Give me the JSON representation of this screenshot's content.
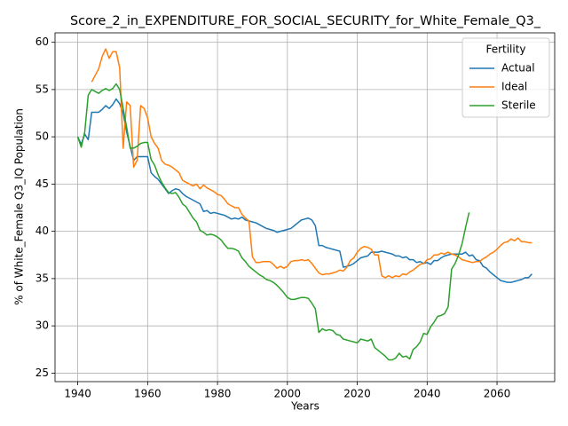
{
  "chart_data": {
    "type": "line",
    "title": "Score_2_in_EXPENDITURE_FOR_SOCIAL_SECURITY_for_White_Female_Q3_",
    "x_label": "Years",
    "y_label": "% of White_Female Q3_IQ Population",
    "legend_title": "Fertility",
    "legend_position": "upper right",
    "grid": true,
    "xlim": [
      1933.5,
      2076.5
    ],
    "ylim": [
      24.1,
      61.0
    ],
    "xticks": [
      1940,
      1960,
      1980,
      2000,
      2020,
      2040,
      2060
    ],
    "yticks": [
      25,
      30,
      35,
      40,
      45,
      50,
      55,
      60
    ],
    "x": [
      1940,
      1941,
      1942,
      1943,
      1944,
      1945,
      1946,
      1947,
      1948,
      1949,
      1950,
      1951,
      1952,
      1953,
      1954,
      1955,
      1956,
      1957,
      1958,
      1959,
      1960,
      1961,
      1962,
      1963,
      1964,
      1965,
      1966,
      1967,
      1968,
      1969,
      1970,
      1971,
      1972,
      1973,
      1974,
      1975,
      1976,
      1977,
      1978,
      1979,
      1980,
      1981,
      1982,
      1983,
      1984,
      1985,
      1986,
      1987,
      1988,
      1989,
      1990,
      1991,
      1992,
      1993,
      1994,
      1995,
      1996,
      1997,
      1998,
      1999,
      2000,
      2001,
      2002,
      2003,
      2004,
      2005,
      2006,
      2007,
      2008,
      2009,
      2010,
      2011,
      2012,
      2013,
      2014,
      2015,
      2016,
      2017,
      2018,
      2019,
      2020,
      2021,
      2022,
      2023,
      2024,
      2025,
      2026,
      2027,
      2028,
      2029,
      2030,
      2031,
      2032,
      2033,
      2034,
      2035,
      2036,
      2037,
      2038,
      2039,
      2040,
      2041,
      2042,
      2043,
      2044,
      2045,
      2046,
      2047,
      2048,
      2049,
      2050,
      2051,
      2052,
      2053,
      2054,
      2055,
      2056,
      2057,
      2058,
      2059,
      2060,
      2061,
      2062,
      2063,
      2064,
      2065,
      2066,
      2067,
      2068,
      2069,
      2070
    ],
    "series": [
      {
        "name": "Actual",
        "color": "#1f77b4",
        "values": [
          50.0,
          49.2,
          50.3,
          49.7,
          52.6,
          52.6,
          52.6,
          52.9,
          53.3,
          53.0,
          53.4,
          54.0,
          53.5,
          52.5,
          50.5,
          49.0,
          47.5,
          47.9,
          47.9,
          47.9,
          47.9,
          46.2,
          45.8,
          45.5,
          45.0,
          44.5,
          44.0,
          44.3,
          44.5,
          44.4,
          44.0,
          43.7,
          43.5,
          43.3,
          43.1,
          42.9,
          42.1,
          42.2,
          41.9,
          42.0,
          41.9,
          41.8,
          41.7,
          41.5,
          41.3,
          41.4,
          41.3,
          41.5,
          41.2,
          41.1,
          41.0,
          40.9,
          40.7,
          40.5,
          40.3,
          40.2,
          40.1,
          39.9,
          40.0,
          40.1,
          40.2,
          40.3,
          40.6,
          40.9,
          41.2,
          41.3,
          41.4,
          41.2,
          40.6,
          38.5,
          38.5,
          38.3,
          38.2,
          38.1,
          38.0,
          37.9,
          36.2,
          36.3,
          36.4,
          36.6,
          36.9,
          37.2,
          37.3,
          37.4,
          37.8,
          37.8,
          37.8,
          37.9,
          37.8,
          37.7,
          37.6,
          37.4,
          37.4,
          37.2,
          37.3,
          37.0,
          37.0,
          36.7,
          36.8,
          36.6,
          36.7,
          36.5,
          36.9,
          36.9,
          37.2,
          37.4,
          37.5,
          37.6,
          37.6,
          37.6,
          37.6,
          37.8,
          37.4,
          37.5,
          37.0,
          36.9,
          36.3,
          36.1,
          35.7,
          35.4,
          35.1,
          34.8,
          34.7,
          34.6,
          34.6,
          34.7,
          34.8,
          34.9,
          35.1,
          35.1,
          35.5
        ]
      },
      {
        "name": "Ideal",
        "color": "#ff7f0e",
        "values": [
          null,
          null,
          null,
          null,
          55.8,
          56.5,
          57.2,
          58.5,
          59.3,
          58.3,
          59.0,
          59.0,
          57.3,
          48.8,
          53.7,
          53.3,
          46.8,
          47.5,
          53.3,
          53.0,
          52.0,
          50.0,
          49.3,
          48.8,
          47.5,
          47.1,
          47.0,
          46.8,
          46.5,
          46.2,
          45.4,
          45.2,
          45.0,
          44.8,
          45.0,
          44.5,
          44.9,
          44.6,
          44.4,
          44.2,
          43.9,
          43.8,
          43.4,
          42.9,
          42.7,
          42.5,
          42.5,
          41.8,
          41.4,
          41.1,
          37.3,
          36.7,
          36.7,
          36.8,
          36.8,
          36.8,
          36.5,
          36.1,
          36.3,
          36.1,
          36.3,
          36.8,
          36.9,
          36.9,
          37.0,
          36.9,
          37.0,
          36.6,
          36.1,
          35.6,
          35.4,
          35.5,
          35.5,
          35.6,
          35.7,
          35.9,
          35.8,
          36.2,
          36.9,
          37.2,
          37.8,
          38.2,
          38.4,
          38.3,
          38.1,
          37.5,
          37.5,
          35.3,
          35.1,
          35.3,
          35.1,
          35.3,
          35.2,
          35.5,
          35.4,
          35.7,
          35.9,
          36.2,
          36.5,
          36.6,
          37.0,
          37.1,
          37.5,
          37.5,
          37.7,
          37.6,
          37.8,
          37.6,
          37.5,
          37.3,
          37.0,
          36.9,
          36.8,
          36.7,
          36.8,
          36.8,
          37.1,
          37.3,
          37.6,
          37.8,
          38.1,
          38.5,
          38.8,
          38.9,
          39.2,
          39.0,
          39.3,
          38.9,
          38.9,
          38.8,
          38.8
        ]
      },
      {
        "name": "Sterile",
        "color": "#2ca02c",
        "values": [
          50.0,
          48.9,
          50.5,
          54.4,
          55.0,
          54.8,
          54.6,
          54.9,
          55.1,
          54.9,
          55.1,
          55.6,
          55.0,
          53.0,
          51.0,
          48.8,
          48.8,
          49.0,
          49.3,
          49.4,
          49.4,
          47.6,
          47.0,
          46.0,
          45.2,
          44.6,
          44.1,
          44.0,
          44.1,
          43.6,
          42.9,
          42.6,
          42.0,
          41.4,
          41.0,
          40.1,
          39.9,
          39.6,
          39.7,
          39.6,
          39.4,
          39.1,
          38.6,
          38.2,
          38.2,
          38.1,
          37.9,
          37.2,
          36.8,
          36.3,
          36.0,
          35.7,
          35.4,
          35.2,
          34.9,
          34.8,
          34.6,
          34.3,
          33.9,
          33.5,
          33.0,
          32.8,
          32.8,
          32.9,
          33.0,
          33.0,
          32.9,
          32.4,
          31.8,
          29.3,
          29.7,
          29.5,
          29.6,
          29.5,
          29.1,
          29.0,
          28.6,
          28.5,
          28.4,
          28.3,
          28.2,
          28.6,
          28.5,
          28.4,
          28.6,
          27.7,
          27.4,
          27.1,
          26.8,
          26.4,
          26.4,
          26.6,
          27.1,
          26.7,
          26.8,
          26.5,
          27.5,
          27.8,
          28.3,
          29.2,
          29.1,
          29.9,
          30.4,
          31.0,
          31.1,
          31.3,
          32.0,
          36.0,
          36.6,
          37.5,
          38.7,
          40.4,
          42.0,
          null,
          null,
          null,
          null,
          null,
          null,
          null,
          null,
          null,
          null,
          null,
          null,
          null,
          null,
          null,
          null,
          null,
          null
        ]
      }
    ]
  }
}
